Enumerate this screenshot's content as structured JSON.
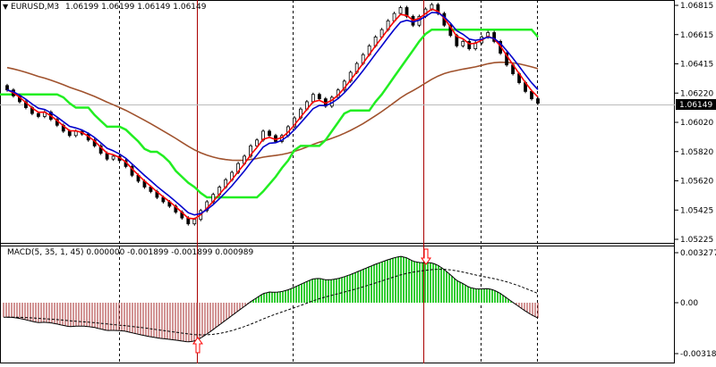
{
  "window": {
    "symbol_label": "EURUSD,M3",
    "prices": "1.06199 1.06199 1.06149 1.06149",
    "current_price": "1.06149"
  },
  "main_axis": {
    "ticks": [
      "1.06815",
      "1.06615",
      "1.06415",
      "1.06220",
      "1.06020",
      "1.05820",
      "1.05620",
      "1.05425",
      "1.05225"
    ]
  },
  "macd": {
    "label": "MACD(5, 35, 1, 45) 0.000000 -0.001899 -0.001899 0.000989",
    "ticks": [
      "0.003277",
      "0.00",
      "-0.003182"
    ]
  },
  "colors": {
    "ma_red": "#ff0000",
    "ma_blue": "#0000cc",
    "ma_brown": "#a0522d",
    "band_green": "#22ee22",
    "hist_green": "#33cc33",
    "hist_red": "#a52a2a",
    "arrow": "#ff0000"
  },
  "chart_data": {
    "type": "candlestick",
    "symbol": "EURUSD",
    "timeframe": "M3",
    "y_range": [
      1.05225,
      1.06815
    ],
    "last_price": 1.06149,
    "close_path": [
      1.0624,
      1.062,
      1.0616,
      1.0612,
      1.0608,
      1.0606,
      1.0609,
      1.0604,
      1.06,
      1.0596,
      1.0593,
      1.0596,
      1.0594,
      1.059,
      1.0586,
      1.0581,
      1.0577,
      1.0579,
      1.0576,
      1.0572,
      1.0566,
      1.0562,
      1.0558,
      1.0555,
      1.0551,
      1.0548,
      1.0545,
      1.0541,
      1.0537,
      1.0533,
      1.0536,
      1.0542,
      1.0548,
      1.0553,
      1.0558,
      1.0563,
      1.0568,
      1.0574,
      1.0579,
      1.0586,
      1.059,
      1.0596,
      1.0593,
      1.0589,
      1.0593,
      1.0599,
      1.0605,
      1.0611,
      1.0616,
      1.0621,
      1.0618,
      1.0613,
      1.0619,
      1.0624,
      1.063,
      1.0636,
      1.0642,
      1.0648,
      1.0654,
      1.066,
      1.0665,
      1.0671,
      1.0676,
      1.068,
      1.0674,
      1.0668,
      1.0674,
      1.0679,
      1.0682,
      1.0676,
      1.0668,
      1.0661,
      1.0654,
      1.0657,
      1.0652,
      1.0656,
      1.066,
      1.0663,
      1.0657,
      1.0649,
      1.0641,
      1.0635,
      1.0629,
      1.0623,
      1.0618,
      1.0615
    ],
    "macd_histogram_trend": "negative, crossing positive near middle, positive peak, declining to negative at end",
    "signal_arrows": [
      "up at macd low",
      "down at macd high"
    ]
  }
}
